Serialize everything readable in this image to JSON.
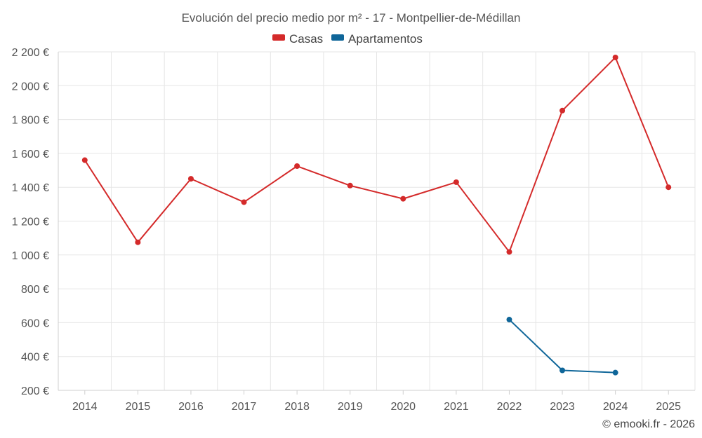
{
  "chart_data": {
    "type": "line",
    "title": "Evolución del precio medio por m² - 17 - Montpellier-de-Médillan",
    "categories": [
      "2014",
      "2015",
      "2016",
      "2017",
      "2018",
      "2019",
      "2020",
      "2021",
      "2022",
      "2023",
      "2024",
      "2025"
    ],
    "series": [
      {
        "name": "Casas",
        "color": "#d42a2a",
        "values": [
          1560,
          1075,
          1450,
          1312,
          1525,
          1410,
          1332,
          1430,
          1018,
          1853,
          2167,
          1400
        ]
      },
      {
        "name": "Apartamentos",
        "color": "#0f6699",
        "values": [
          null,
          null,
          null,
          null,
          null,
          null,
          null,
          null,
          618,
          318,
          305,
          null
        ]
      }
    ],
    "ylim": [
      200,
      2200
    ],
    "yticks": [
      200,
      400,
      600,
      800,
      1000,
      1200,
      1400,
      1600,
      1800,
      2000,
      2200
    ],
    "ytick_labels": [
      "200 €",
      "400 €",
      "600 €",
      "800 €",
      "1 000 €",
      "1 200 €",
      "1 400 €",
      "1 600 €",
      "1 800 €",
      "2 000 €",
      "2 200 €"
    ],
    "xlabel": "",
    "ylabel": "",
    "grid": true,
    "legend_position": "top-center"
  },
  "credit": "© emooki.fr - 2026"
}
